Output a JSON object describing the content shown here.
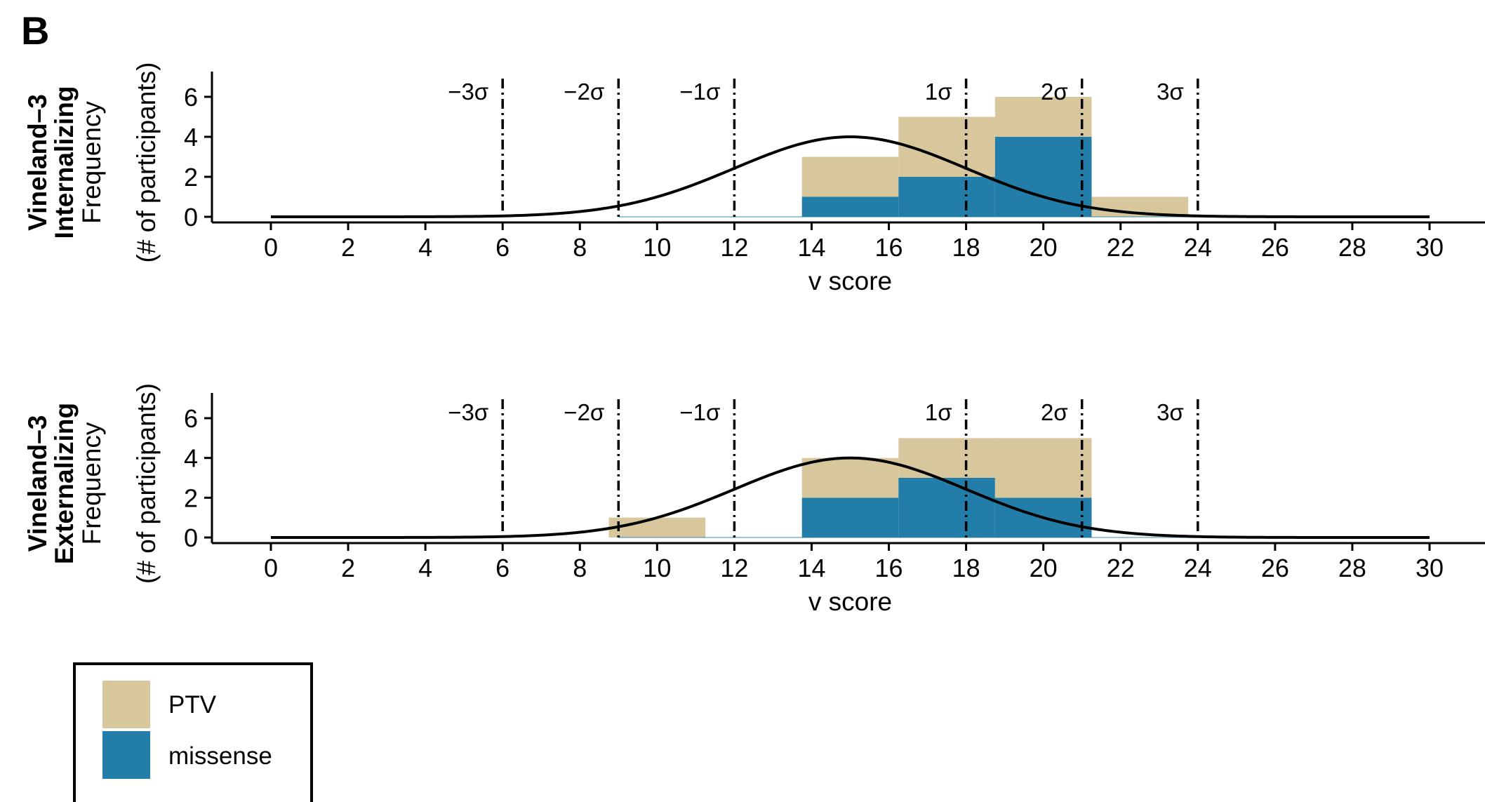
{
  "panel_label": "B",
  "colors": {
    "PTV": "#D8C69D",
    "missense": "#227EA8",
    "curve": "#000000",
    "sigma_line": "#000000",
    "axis": "#000000"
  },
  "legend": {
    "position": "bottom-left",
    "items": [
      {
        "key": "PTV",
        "label": "PTV"
      },
      {
        "key": "missense",
        "label": "missense"
      }
    ]
  },
  "chart_data": [
    {
      "type": "bar",
      "stacked": true,
      "row_title_lines": [
        "Vineland–3",
        "Internalizing"
      ],
      "ylabel_lines": [
        "Frequency",
        "(# of participants)"
      ],
      "xlabel": "v score",
      "xlim": [
        0,
        30
      ],
      "ylim": [
        0,
        6
      ],
      "x_ticks": [
        0,
        2,
        4,
        6,
        8,
        10,
        12,
        14,
        16,
        18,
        20,
        22,
        24,
        26,
        28,
        30
      ],
      "y_ticks": [
        0,
        2,
        4,
        6
      ],
      "bin_width": 2.5,
      "bin_centers": [
        10,
        15,
        17.5,
        20,
        22.5
      ],
      "series": [
        {
          "name": "missense",
          "values": [
            0,
            1,
            2,
            4,
            0
          ]
        },
        {
          "name": "PTV",
          "values": [
            0,
            2,
            3,
            2,
            1
          ]
        }
      ],
      "normal_curve": {
        "mean": 15,
        "sd": 3,
        "peak": 4
      },
      "sigma_lines": [
        {
          "x": 6,
          "label": "−3σ"
        },
        {
          "x": 9,
          "label": "−2σ"
        },
        {
          "x": 12,
          "label": "−1σ"
        },
        {
          "x": 18,
          "label": "1σ"
        },
        {
          "x": 21,
          "label": "2σ"
        },
        {
          "x": 24,
          "label": "3σ"
        }
      ]
    },
    {
      "type": "bar",
      "stacked": true,
      "row_title_lines": [
        "Vineland–3",
        "Externalizing"
      ],
      "ylabel_lines": [
        "Frequency",
        "(# of participants)"
      ],
      "xlabel": "v score",
      "xlim": [
        0,
        30
      ],
      "ylim": [
        0,
        6
      ],
      "x_ticks": [
        0,
        2,
        4,
        6,
        8,
        10,
        12,
        14,
        16,
        18,
        20,
        22,
        24,
        26,
        28,
        30
      ],
      "y_ticks": [
        0,
        2,
        4,
        6
      ],
      "bin_width": 2.5,
      "bin_centers": [
        10,
        15,
        17.5,
        20
      ],
      "series": [
        {
          "name": "missense",
          "values": [
            0,
            2,
            3,
            2
          ]
        },
        {
          "name": "PTV",
          "values": [
            1,
            2,
            2,
            3
          ]
        }
      ],
      "normal_curve": {
        "mean": 15,
        "sd": 3,
        "peak": 4
      },
      "sigma_lines": [
        {
          "x": 6,
          "label": "−3σ"
        },
        {
          "x": 9,
          "label": "−2σ"
        },
        {
          "x": 12,
          "label": "−1σ"
        },
        {
          "x": 18,
          "label": "1σ"
        },
        {
          "x": 21,
          "label": "2σ"
        },
        {
          "x": 24,
          "label": "3σ"
        }
      ]
    }
  ]
}
